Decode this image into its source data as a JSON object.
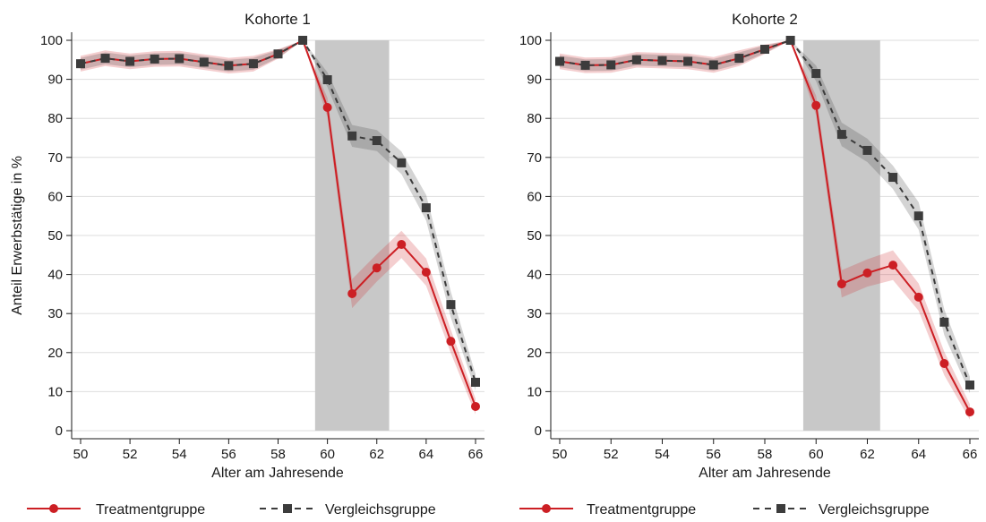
{
  "chart_data": [
    {
      "type": "line",
      "title": "Kohorte 1",
      "xlabel": "Alter am Jahresende",
      "ylabel": "Anteil Erwerbstätige in %",
      "x": [
        50,
        51,
        52,
        53,
        54,
        55,
        56,
        57,
        58,
        59,
        60,
        61,
        62,
        63,
        64,
        65,
        66
      ],
      "xticks": [
        50,
        52,
        54,
        56,
        58,
        60,
        62,
        64,
        66
      ],
      "yticks": [
        0,
        10,
        20,
        30,
        40,
        50,
        60,
        70,
        80,
        90,
        100
      ],
      "xlim": [
        50,
        66
      ],
      "ylim": [
        0,
        100
      ],
      "grid": true,
      "grid_color": "#dedede",
      "legend": "bottom",
      "shaded_region": {
        "x": [
          59.5,
          62.5
        ],
        "y": [
          0,
          100
        ],
        "color": "#c8c8c8"
      },
      "series": [
        {
          "name": "Treatmentgruppe",
          "color": "#cc1f24",
          "dashed": false,
          "marker": "circle",
          "values": [
            94.0,
            95.4,
            94.6,
            95.2,
            95.3,
            94.4,
            93.5,
            94.0,
            96.5,
            100,
            82.8,
            35.1,
            41.7,
            47.7,
            40.6,
            22.9,
            6.2
          ],
          "ci_lower": [
            92.0,
            93.4,
            92.6,
            93.2,
            93.3,
            92.4,
            91.5,
            92.0,
            95.3,
            100,
            80.3,
            31.4,
            38.2,
            44.2,
            37.1,
            19.9,
            4.2
          ],
          "ci_upper": [
            96.0,
            97.4,
            96.6,
            97.2,
            97.3,
            96.4,
            95.5,
            96.0,
            97.7,
            100,
            85.3,
            38.8,
            45.2,
            51.2,
            44.1,
            25.9,
            8.2
          ]
        },
        {
          "name": "Vergleichsgruppe",
          "color": "#3c3c3c",
          "dashed": true,
          "marker": "square",
          "values": [
            94.0,
            95.4,
            94.6,
            95.2,
            95.3,
            94.4,
            93.5,
            94.0,
            96.5,
            100,
            89.9,
            75.5,
            74.3,
            68.6,
            57.1,
            32.3,
            12.4
          ],
          "ci_lower": [
            92.5,
            93.9,
            93.1,
            93.7,
            93.8,
            92.9,
            92.0,
            92.5,
            95.5,
            100,
            88.0,
            72.7,
            71.6,
            65.7,
            53.8,
            29.0,
            10.3
          ],
          "ci_upper": [
            95.5,
            96.9,
            96.1,
            96.7,
            96.8,
            95.9,
            95.0,
            95.5,
            97.5,
            100,
            91.8,
            78.3,
            77.0,
            71.5,
            60.4,
            35.6,
            14.5
          ]
        }
      ]
    },
    {
      "type": "line",
      "title": "Kohorte 2",
      "xlabel": "Alter am Jahresende",
      "x": [
        50,
        51,
        52,
        53,
        54,
        55,
        56,
        57,
        58,
        59,
        60,
        61,
        62,
        63,
        64,
        65,
        66
      ],
      "xticks": [
        50,
        52,
        54,
        56,
        58,
        60,
        62,
        64,
        66
      ],
      "yticks": [
        0,
        10,
        20,
        30,
        40,
        50,
        60,
        70,
        80,
        90,
        100
      ],
      "xlim": [
        50,
        66
      ],
      "ylim": [
        0,
        100
      ],
      "grid": true,
      "grid_color": "#dedede",
      "legend": "bottom",
      "shaded_region": {
        "x": [
          59.5,
          62.5
        ],
        "y": [
          0,
          100
        ],
        "color": "#c8c8c8"
      },
      "series": [
        {
          "name": "Treatmentgruppe",
          "color": "#cc1f24",
          "dashed": false,
          "marker": "circle",
          "values": [
            94.6,
            93.6,
            93.7,
            95.0,
            94.8,
            94.6,
            93.7,
            95.4,
            97.7,
            100,
            83.3,
            37.6,
            40.4,
            42.4,
            34.2,
            17.2,
            4.8
          ],
          "ci_lower": [
            92.6,
            91.6,
            91.7,
            93.0,
            92.8,
            92.6,
            91.7,
            93.4,
            96.5,
            100,
            80.8,
            34.1,
            36.9,
            38.6,
            30.7,
            14.2,
            2.8
          ],
          "ci_upper": [
            96.6,
            95.6,
            95.7,
            97.0,
            96.8,
            96.6,
            95.7,
            97.4,
            98.9,
            100,
            85.8,
            41.1,
            43.9,
            46.2,
            37.7,
            20.2,
            6.8
          ]
        },
        {
          "name": "Vergleichsgruppe",
          "color": "#3c3c3c",
          "dashed": true,
          "marker": "square",
          "values": [
            94.6,
            93.6,
            93.7,
            95.0,
            94.8,
            94.6,
            93.7,
            95.4,
            97.7,
            100,
            91.5,
            75.9,
            71.8,
            64.9,
            55.0,
            27.8,
            11.7
          ],
          "ci_lower": [
            93.1,
            92.1,
            92.2,
            93.5,
            93.3,
            93.1,
            92.2,
            93.9,
            96.7,
            100,
            89.5,
            72.9,
            68.8,
            61.9,
            51.5,
            24.5,
            9.6
          ],
          "ci_upper": [
            96.1,
            95.1,
            95.2,
            96.5,
            96.3,
            96.1,
            95.2,
            96.9,
            98.7,
            100,
            93.5,
            78.9,
            74.8,
            67.9,
            58.5,
            31.1,
            13.8
          ]
        }
      ]
    }
  ]
}
